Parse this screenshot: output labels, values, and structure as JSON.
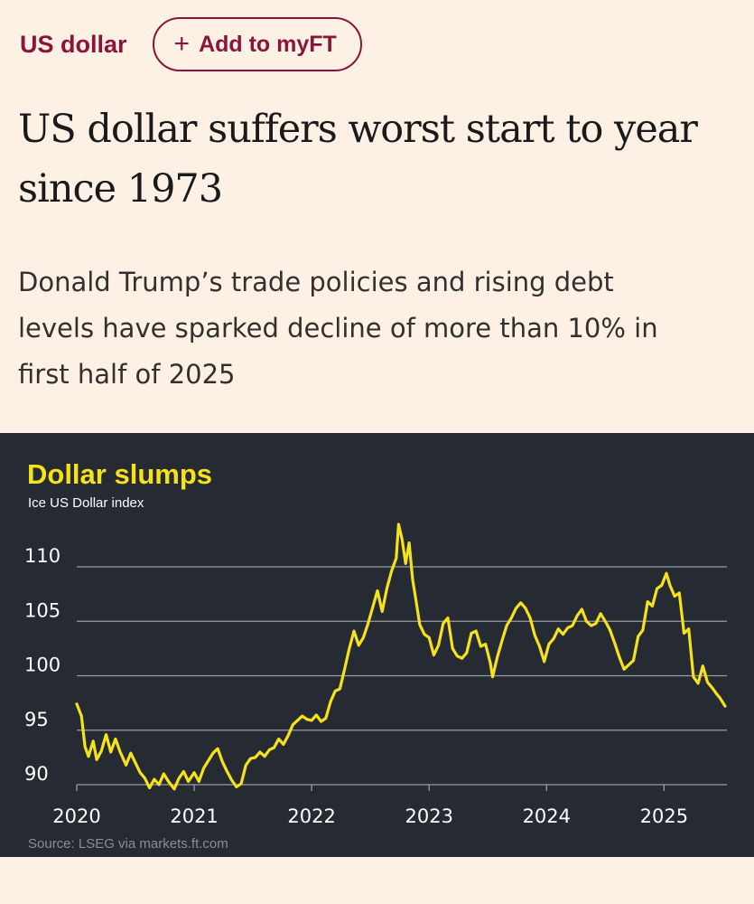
{
  "topic": {
    "label": "US dollar",
    "follow_label": "Add to myFT",
    "follow_icon": "plus-icon"
  },
  "article": {
    "headline_line1": "US dollar suffers worst start to year",
    "headline_line2": "since 1973",
    "standfirst_line1": "Donald Trump’s trade policies and rising debt",
    "standfirst_line2": "levels have sparked decline of more than 10% in",
    "standfirst_line3": "first half of 2025"
  },
  "colors": {
    "page_background": "#fdf1e6",
    "accent": "#8a1538",
    "chart_background": "#262a33",
    "line": "#f5e21c",
    "chart_title": "#f5e21c"
  },
  "chart_data": {
    "type": "line",
    "title": "Dollar slumps",
    "subtitle": "Ice US Dollar index",
    "source": "Source: LSEG via markets.ft.com",
    "xlabel": "",
    "ylabel": "",
    "ylim": [
      89.5,
      114.5
    ],
    "yticks": [
      90,
      95,
      100,
      105,
      110
    ],
    "xticks": [
      "2020",
      "2021",
      "2022",
      "2023",
      "2024",
      "2025"
    ],
    "xlim": [
      2020.0,
      2025.52
    ],
    "grid": true,
    "legend": "none",
    "series": [
      {
        "name": "",
        "points": [
          [
            2020.0,
            97.4
          ],
          [
            2020.04,
            96.3
          ],
          [
            2020.07,
            93.5
          ],
          [
            2020.1,
            92.6
          ],
          [
            2020.14,
            94.0
          ],
          [
            2020.17,
            92.3
          ],
          [
            2020.21,
            93.1
          ],
          [
            2020.25,
            94.6
          ],
          [
            2020.29,
            93.0
          ],
          [
            2020.33,
            94.2
          ],
          [
            2020.37,
            93.0
          ],
          [
            2020.42,
            91.8
          ],
          [
            2020.46,
            92.9
          ],
          [
            2020.5,
            92.0
          ],
          [
            2020.54,
            91.1
          ],
          [
            2020.58,
            90.6
          ],
          [
            2020.62,
            89.7
          ],
          [
            2020.66,
            90.5
          ],
          [
            2020.7,
            90.0
          ],
          [
            2020.74,
            91.0
          ],
          [
            2020.78,
            90.3
          ],
          [
            2020.83,
            89.6
          ],
          [
            2020.87,
            90.6
          ],
          [
            2020.91,
            91.2
          ],
          [
            2020.95,
            90.3
          ],
          [
            2021.0,
            91.1
          ],
          [
            2021.04,
            90.3
          ],
          [
            2021.08,
            91.5
          ],
          [
            2021.12,
            92.2
          ],
          [
            2021.16,
            92.9
          ],
          [
            2021.2,
            93.3
          ],
          [
            2021.24,
            92.1
          ],
          [
            2021.28,
            91.2
          ],
          [
            2021.32,
            90.4
          ],
          [
            2021.36,
            89.8
          ],
          [
            2021.4,
            90.1
          ],
          [
            2021.44,
            91.8
          ],
          [
            2021.48,
            92.4
          ],
          [
            2021.52,
            92.5
          ],
          [
            2021.56,
            93.0
          ],
          [
            2021.6,
            92.6
          ],
          [
            2021.64,
            93.2
          ],
          [
            2021.68,
            93.4
          ],
          [
            2021.72,
            94.2
          ],
          [
            2021.76,
            93.7
          ],
          [
            2021.8,
            94.5
          ],
          [
            2021.84,
            95.5
          ],
          [
            2021.88,
            95.9
          ],
          [
            2021.92,
            96.3
          ],
          [
            2021.96,
            96.0
          ],
          [
            2022.0,
            95.9
          ],
          [
            2022.04,
            96.4
          ],
          [
            2022.08,
            95.8
          ],
          [
            2022.12,
            96.1
          ],
          [
            2022.16,
            97.6
          ],
          [
            2022.2,
            98.6
          ],
          [
            2022.24,
            98.8
          ],
          [
            2022.28,
            100.6
          ],
          [
            2022.32,
            102.5
          ],
          [
            2022.36,
            104.1
          ],
          [
            2022.4,
            102.8
          ],
          [
            2022.44,
            103.5
          ],
          [
            2022.48,
            104.8
          ],
          [
            2022.52,
            106.3
          ],
          [
            2022.56,
            107.8
          ],
          [
            2022.6,
            105.9
          ],
          [
            2022.64,
            108.0
          ],
          [
            2022.68,
            109.6
          ],
          [
            2022.72,
            110.8
          ],
          [
            2022.74,
            113.9
          ],
          [
            2022.77,
            112.5
          ],
          [
            2022.8,
            110.3
          ],
          [
            2022.83,
            112.2
          ],
          [
            2022.86,
            108.8
          ],
          [
            2022.89,
            106.8
          ],
          [
            2022.92,
            104.7
          ],
          [
            2022.96,
            103.8
          ],
          [
            2023.0,
            103.5
          ],
          [
            2023.04,
            101.9
          ],
          [
            2023.08,
            102.8
          ],
          [
            2023.12,
            104.8
          ],
          [
            2023.16,
            105.3
          ],
          [
            2023.2,
            102.5
          ],
          [
            2023.24,
            101.8
          ],
          [
            2023.28,
            101.6
          ],
          [
            2023.32,
            102.1
          ],
          [
            2023.36,
            103.9
          ],
          [
            2023.4,
            104.1
          ],
          [
            2023.44,
            102.7
          ],
          [
            2023.48,
            102.9
          ],
          [
            2023.52,
            101.2
          ],
          [
            2023.54,
            99.9
          ],
          [
            2023.58,
            101.7
          ],
          [
            2023.62,
            103.2
          ],
          [
            2023.66,
            104.6
          ],
          [
            2023.7,
            105.3
          ],
          [
            2023.74,
            106.2
          ],
          [
            2023.78,
            106.7
          ],
          [
            2023.82,
            106.2
          ],
          [
            2023.86,
            105.3
          ],
          [
            2023.9,
            103.7
          ],
          [
            2023.94,
            102.7
          ],
          [
            2023.98,
            101.3
          ],
          [
            2024.02,
            102.9
          ],
          [
            2024.06,
            103.4
          ],
          [
            2024.1,
            104.3
          ],
          [
            2024.14,
            103.8
          ],
          [
            2024.18,
            104.4
          ],
          [
            2024.22,
            104.6
          ],
          [
            2024.26,
            105.5
          ],
          [
            2024.3,
            106.1
          ],
          [
            2024.34,
            105.0
          ],
          [
            2024.38,
            104.6
          ],
          [
            2024.42,
            104.8
          ],
          [
            2024.46,
            105.7
          ],
          [
            2024.5,
            105.0
          ],
          [
            2024.54,
            104.2
          ],
          [
            2024.58,
            103.0
          ],
          [
            2024.62,
            101.7
          ],
          [
            2024.66,
            100.6
          ],
          [
            2024.7,
            101.0
          ],
          [
            2024.74,
            101.4
          ],
          [
            2024.78,
            103.6
          ],
          [
            2024.82,
            104.2
          ],
          [
            2024.86,
            106.8
          ],
          [
            2024.9,
            106.4
          ],
          [
            2024.94,
            108.0
          ],
          [
            2024.98,
            108.3
          ],
          [
            2025.02,
            109.4
          ],
          [
            2025.05,
            108.3
          ],
          [
            2025.09,
            107.3
          ],
          [
            2025.13,
            107.6
          ],
          [
            2025.17,
            103.9
          ],
          [
            2025.21,
            104.3
          ],
          [
            2025.25,
            99.9
          ],
          [
            2025.29,
            99.3
          ],
          [
            2025.33,
            100.9
          ],
          [
            2025.37,
            99.4
          ],
          [
            2025.41,
            98.9
          ],
          [
            2025.45,
            98.3
          ],
          [
            2025.48,
            97.9
          ],
          [
            2025.52,
            97.2
          ]
        ]
      }
    ]
  }
}
